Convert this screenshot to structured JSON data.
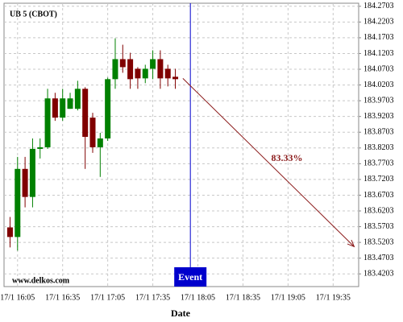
{
  "chart_data": {
    "type": "candlestick",
    "title": "UB 5 (CBOT)",
    "watermark": "www.delkos.com",
    "x_label": "Date",
    "x": [
      "17/1 16:00",
      "17/1 16:05",
      "17/1 16:10",
      "17/1 16:15",
      "17/1 16:20",
      "17/1 16:25",
      "17/1 16:30",
      "17/1 16:35",
      "17/1 16:40",
      "17/1 16:45",
      "17/1 16:50",
      "17/1 16:55",
      "17/1 17:00",
      "17/1 17:05",
      "17/1 17:10",
      "17/1 17:15",
      "17/1 17:20",
      "17/1 17:25",
      "17/1 17:30",
      "17/1 17:35",
      "17/1 17:40",
      "17/1 17:45",
      "17/1 17:50"
    ],
    "open": [
      183.568,
      183.5375,
      183.7538,
      183.6647,
      183.8174,
      183.8225,
      183.9777,
      183.9166,
      183.9446,
      183.9446,
      184.0082,
      183.9166,
      183.8225,
      183.8505,
      184.0388,
      184.1024,
      184.1024,
      184.0718,
      184.0413,
      184.0718,
      184.1024,
      184.0718,
      184.0464
    ],
    "high": [
      183.6011,
      183.7919,
      183.7919,
      183.8505,
      183.8505,
      184.0082,
      183.9955,
      184.0082,
      183.9955,
      184.0337,
      184.0133,
      183.9319,
      183.8683,
      184.0438,
      184.1685,
      184.1482,
      184.1227,
      184.0769,
      184.0846,
      184.1304,
      184.1304,
      184.0846,
      184.0718
    ],
    "low": [
      183.5044,
      183.4942,
      183.6316,
      183.6316,
      183.7868,
      183.8174,
      183.9064,
      183.9064,
      183.9446,
      183.9395,
      183.7538,
      183.8047,
      183.7283,
      183.8428,
      184.0082,
      184.0591,
      184.0082,
      184.0082,
      184.026,
      184.0388,
      184.0082,
      184.0158,
      184.0082
    ],
    "close": [
      183.5375,
      183.7538,
      183.6647,
      183.8174,
      183.8225,
      183.9777,
      183.9166,
      183.9777,
      183.9777,
      184.0082,
      183.8555,
      183.8225,
      183.8505,
      184.0388,
      184.1024,
      184.0769,
      184.0388,
      184.0413,
      184.0718,
      184.1024,
      184.0413,
      184.0413,
      184.0388
    ],
    "up_color": "#008000",
    "down_color": "#800000",
    "xlim": [
      "17/1 15:56",
      "17/1 19:52"
    ],
    "xticks": [
      "17/1 16:05",
      "17/1 16:35",
      "17/1 17:05",
      "17/1 17:35",
      "17/1 18:05",
      "17/1 18:35",
      "17/1 19:05",
      "17/1 19:35"
    ],
    "ylim": [
      183.38,
      184.28
    ],
    "yticks": [
      183.4203,
      183.4703,
      183.5203,
      183.5703,
      183.6203,
      183.6703,
      183.7203,
      183.7703,
      183.8203,
      183.8703,
      183.9203,
      183.9703,
      184.0203,
      184.0703,
      184.1203,
      184.1703,
      184.2203,
      184.2703
    ],
    "grid": true,
    "event": {
      "label": "Event",
      "x": "17/1 18:00",
      "color": "#0000cc"
    },
    "forecast": {
      "label": "83.33%",
      "color": "#8b1a1a",
      "x": [
        "17/1 17:55",
        "17/1 19:49"
      ],
      "y": [
        184.0413,
        183.5069
      ]
    }
  }
}
